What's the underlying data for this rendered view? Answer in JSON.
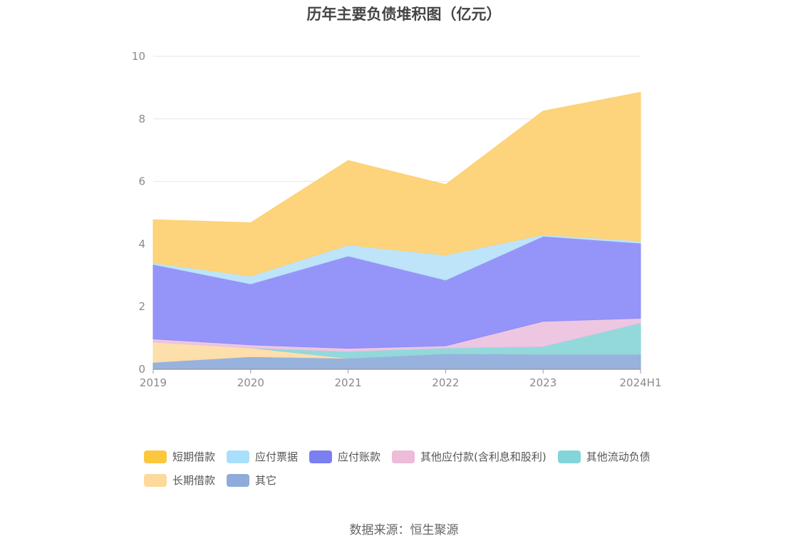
{
  "chart_data": {
    "type": "area",
    "stacked": true,
    "title": "历年主要负债堆积图（亿元）",
    "categories": [
      "2019",
      "2020",
      "2021",
      "2022",
      "2023",
      "2024H1"
    ],
    "ylim": [
      0,
      10
    ],
    "yticks": [
      0,
      2,
      4,
      6,
      8,
      10
    ],
    "grid": true,
    "legend_position": "bottom",
    "series": [
      {
        "name": "其它",
        "color": "#8fabdb",
        "values": [
          0.22,
          0.4,
          0.35,
          0.5,
          0.48,
          0.48
        ]
      },
      {
        "name": "长期借款",
        "color": "#fddca4",
        "values": [
          0.65,
          0.28,
          0.0,
          0.0,
          0.0,
          0.0
        ]
      },
      {
        "name": "其他流动负债",
        "color": "#8ad6d9",
        "values": [
          0.0,
          0.0,
          0.22,
          0.18,
          0.25,
          1.0
        ]
      },
      {
        "name": "其他应付款(含利息和股利)",
        "color": "#ecc1de",
        "values": [
          0.1,
          0.1,
          0.1,
          0.07,
          0.8,
          0.15
        ]
      },
      {
        "name": "应付账款",
        "color": "#8c8cf8",
        "values": [
          2.38,
          1.95,
          2.95,
          2.1,
          2.72,
          2.4
        ]
      },
      {
        "name": "应付票据",
        "color": "#b8e2f8",
        "values": [
          0.05,
          0.25,
          0.35,
          0.8,
          0.05,
          0.07
        ]
      },
      {
        "name": "短期借款",
        "color": "#fdd070",
        "values": [
          1.38,
          1.7,
          2.7,
          2.25,
          3.95,
          4.75
        ]
      }
    ]
  },
  "legend": [
    {
      "label": "短期借款",
      "color": "#fdc73d"
    },
    {
      "label": "应付票据",
      "color": "#a8e0fb"
    },
    {
      "label": "应付账款",
      "color": "#7b7ff0"
    },
    {
      "label": "其他应付款(含利息和股利)",
      "color": "#ecbcd9"
    },
    {
      "label": "其他流动负债",
      "color": "#82d6d9"
    },
    {
      "label": "长期借款",
      "color": "#fdd99b"
    },
    {
      "label": "其它",
      "color": "#8fabdb"
    }
  ],
  "source": "数据来源：恒生聚源"
}
